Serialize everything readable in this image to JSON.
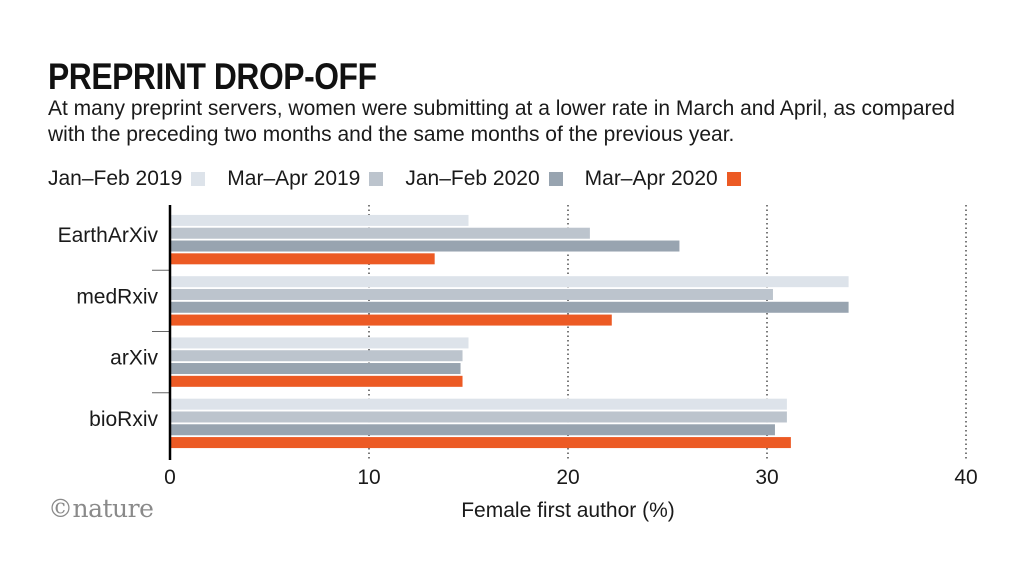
{
  "header": {
    "title": "PREPRINT DROP-OFF",
    "subtitle": "At many preprint servers, women were submitting at a lower rate in March and April, as compared with the preceding two months and the same months of the previous year."
  },
  "watermark": "©nature",
  "chart_data": {
    "type": "bar",
    "orientation": "horizontal",
    "title": "PREPRINT DROP-OFF",
    "xlabel": "Female first author (%)",
    "ylabel": "",
    "xlim": [
      0,
      40
    ],
    "xticks": [
      0,
      10,
      20,
      30,
      40
    ],
    "grid": "vertical dotted",
    "legend_position": "top",
    "categories": [
      "EarthArXiv",
      "medRxiv",
      "arXiv",
      "bioRxiv"
    ],
    "series": [
      {
        "name": "Jan–Feb 2019",
        "color": "#dde3ea",
        "values": [
          15.0,
          34.1,
          15.0,
          31.0
        ]
      },
      {
        "name": "Mar–Apr 2019",
        "color": "#bcc4cd",
        "values": [
          21.1,
          30.3,
          14.7,
          31.0
        ]
      },
      {
        "name": "Jan–Feb 2020",
        "color": "#98a4b0",
        "values": [
          25.6,
          34.1,
          14.6,
          30.4
        ]
      },
      {
        "name": "Mar–Apr 2020",
        "color": "#ec5a24",
        "values": [
          13.3,
          22.2,
          14.7,
          31.2
        ]
      }
    ]
  }
}
